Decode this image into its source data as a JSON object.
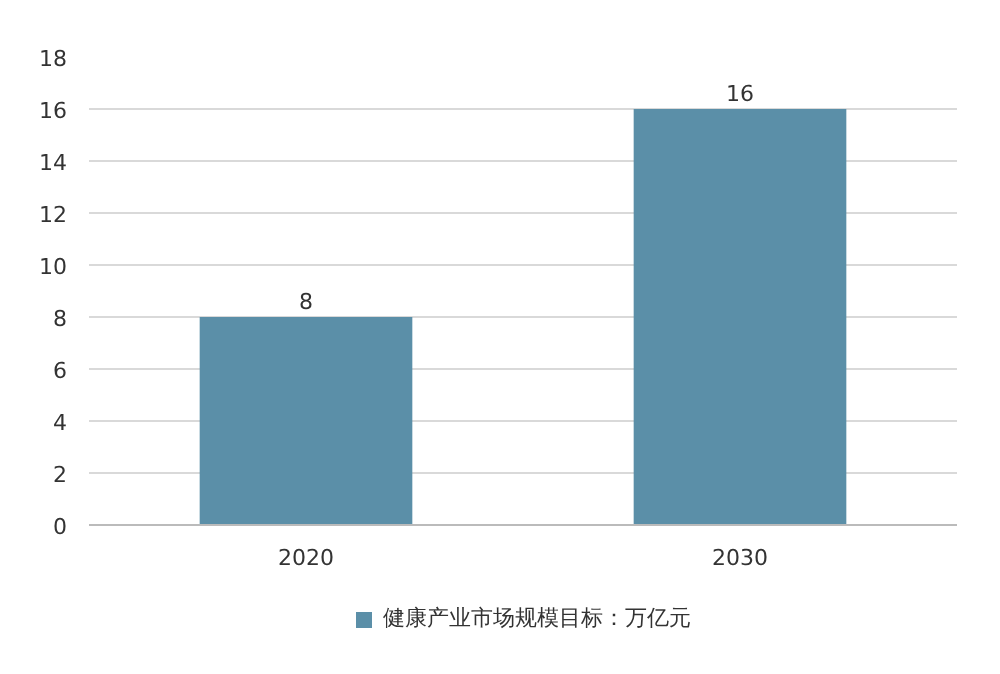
{
  "chart_data": {
    "type": "bar",
    "categories": [
      "2020",
      "2030"
    ],
    "series": [
      {
        "name": "健康产业市场规模目标：万亿元",
        "color": "#5b8fa8",
        "values": [
          8,
          16
        ]
      }
    ],
    "ylim": [
      0,
      18
    ],
    "yticks": [
      0,
      2,
      4,
      6,
      8,
      10,
      12,
      14,
      16,
      18
    ],
    "grid": "y",
    "legend": "bottom",
    "data_labels": true
  }
}
